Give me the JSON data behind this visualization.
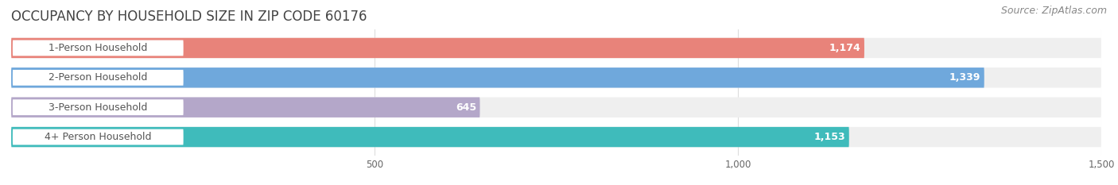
{
  "title": "OCCUPANCY BY HOUSEHOLD SIZE IN ZIP CODE 60176",
  "source": "Source: ZipAtlas.com",
  "categories": [
    "1-Person Household",
    "2-Person Household",
    "3-Person Household",
    "4+ Person Household"
  ],
  "values": [
    1174,
    1339,
    645,
    1153
  ],
  "bar_colors": [
    "#E8837A",
    "#6FA8DC",
    "#B4A7C9",
    "#3FBBBB"
  ],
  "bar_labels": [
    "1,174",
    "1,339",
    "645",
    "1,153"
  ],
  "xlim": [
    0,
    1500
  ],
  "xticks": [
    500,
    1000,
    1500
  ],
  "xtick_labels": [
    "500",
    "1,000",
    "1,500"
  ],
  "background_color": "#ffffff",
  "bar_background_color": "#efefef",
  "title_fontsize": 12,
  "label_fontsize": 9,
  "value_fontsize": 9,
  "source_fontsize": 9,
  "bar_height": 0.68,
  "label_color": "#555555",
  "title_color": "#444444"
}
